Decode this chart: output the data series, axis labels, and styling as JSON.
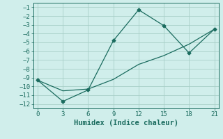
{
  "line1_x": [
    0,
    3,
    6,
    9,
    12,
    15,
    18,
    21
  ],
  "line1_y": [
    -9.3,
    -11.7,
    -10.4,
    -4.8,
    -1.3,
    -3.1,
    -6.2,
    -3.5
  ],
  "line2_x": [
    0,
    3,
    6,
    9,
    12,
    15,
    18,
    21
  ],
  "line2_y": [
    -9.3,
    -10.5,
    -10.3,
    -9.2,
    -7.5,
    -6.5,
    -5.2,
    -3.5
  ],
  "line_color": "#1a6b5e",
  "bg_color": "#d0eeeb",
  "grid_color": "#a8cfc8",
  "xlabel": "Humidex (Indice chaleur)",
  "xlim": [
    -0.5,
    21.5
  ],
  "ylim": [
    -12.5,
    -0.5
  ],
  "xticks": [
    0,
    3,
    6,
    9,
    12,
    15,
    18,
    21
  ],
  "yticks": [
    -1,
    -2,
    -3,
    -4,
    -5,
    -6,
    -7,
    -8,
    -9,
    -10,
    -11,
    -12
  ],
  "xlabel_fontsize": 7.5,
  "tick_fontsize": 6.5
}
